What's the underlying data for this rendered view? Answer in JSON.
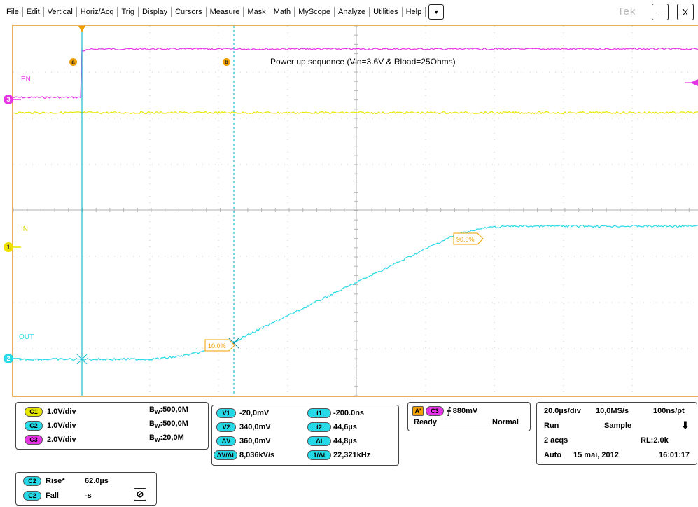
{
  "menu": {
    "items": [
      "File",
      "Edit",
      "Vertical",
      "Horiz/Acq",
      "Trig",
      "Display",
      "Cursors",
      "Measure",
      "Mask",
      "Math",
      "MyScope",
      "Analyze",
      "Utilities",
      "Help"
    ],
    "dropdown_glyph": "▼",
    "brand": "Tek",
    "minimize_glyph": "—",
    "close_glyph": "X"
  },
  "scope": {
    "title": "Power up sequence (Vin=3.6V & Rload=25Ohms)",
    "channel_labels": {
      "en": "EN",
      "in": "IN",
      "out": "OUT"
    },
    "markers": {
      "ch3": "3",
      "ch1": "1",
      "ch2": "2"
    },
    "cursor_markers": {
      "a": "a",
      "b": "b"
    },
    "rise_labels": {
      "low": "10.0%",
      "high": "90.0%"
    },
    "colors": {
      "ch1": "#e6e600",
      "ch2": "#26d9e6",
      "ch3": "#e633e6",
      "grid": "#c8c8c8",
      "frame": "#e8b05a",
      "cursor": "#1fbcd0",
      "label": "#f0a000"
    }
  },
  "vertical": {
    "channels": [
      {
        "pill": "C1",
        "scale": "1.0V/div",
        "bw_prefix": "B",
        "bw_sub": "W",
        "bw": ":500,0M",
        "color": "#e6e600"
      },
      {
        "pill": "C2",
        "scale": "1.0V/div",
        "bw_prefix": "B",
        "bw_sub": "W",
        "bw": ":500,0M",
        "color": "#26d9e6"
      },
      {
        "pill": "C3",
        "scale": "2.0V/div",
        "bw_prefix": "B",
        "bw_sub": "W",
        "bw": ":20,0M",
        "color": "#e633e6"
      }
    ]
  },
  "cursors": {
    "v1": {
      "pill": "V1",
      "value": "-20,0mV"
    },
    "v2": {
      "pill": "V2",
      "value": "340,0mV"
    },
    "dv": {
      "pill": "ΔV",
      "value": "360,0mV"
    },
    "dvdt": {
      "pill": "ΔV/Δt",
      "value": "8,036kV/s"
    },
    "t1": {
      "pill": "t1",
      "value": "-200.0ns"
    },
    "t2": {
      "pill": "t2",
      "value": "44,6µs"
    },
    "dt": {
      "pill": "Δt",
      "value": "44,8µs"
    },
    "inv_dt": {
      "pill": "1/Δt",
      "value": "22,321kHz"
    }
  },
  "trigger": {
    "a_pill": "A'",
    "ch_pill": "C3",
    "slope_glyph": "⨍",
    "level": "880mV",
    "state": "Ready",
    "mode": "Normal"
  },
  "acquisition": {
    "time_div": "20.0µs/div",
    "sample_rate": "10,0MS/s",
    "res": "100ns/pt",
    "run": "Run",
    "sample_mode": "Sample",
    "arrow_glyph": "⬇",
    "acqs": "2 acqs",
    "record_length": "RL:2.0k",
    "trigger_mode": "Auto",
    "date": "15 mai, 2012",
    "time": "16:01:17"
  },
  "measurements": {
    "rise": {
      "pill": "C2",
      "label": "Rise*",
      "value": "62.0µs"
    },
    "fall": {
      "pill": "C2",
      "label": "Fall",
      "value": "-s"
    },
    "stats_glyph": "⊘"
  }
}
